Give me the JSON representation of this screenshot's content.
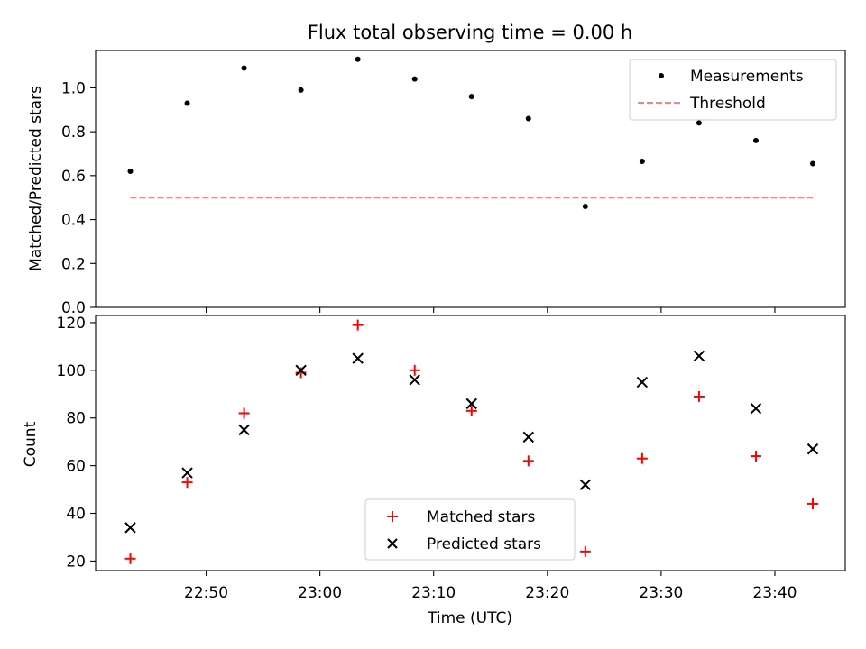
{
  "chart_data": [
    {
      "type": "scatter",
      "title": "Flux total observing time = 0.00 h",
      "ylabel": "Matched/Predicted stars",
      "xlabel": "",
      "ylim": [
        0,
        1.17
      ],
      "y_ticks": [
        "0.0",
        "0.2",
        "0.4",
        "0.6",
        "0.8",
        "1.0"
      ],
      "x": [
        "22:43:20",
        "22:48:20",
        "22:53:20",
        "22:58:20",
        "23:03:20",
        "23:08:20",
        "23:13:20",
        "23:18:20",
        "23:23:20",
        "23:28:20",
        "23:33:20",
        "23:38:20",
        "23:43:20"
      ],
      "series": [
        {
          "name": "Measurements",
          "kind": "dot",
          "color": "#000000",
          "values": [
            0.62,
            0.93,
            1.09,
            0.99,
            1.13,
            1.04,
            0.96,
            0.86,
            0.46,
            0.665,
            0.84,
            0.76,
            0.655
          ]
        },
        {
          "name": "Threshold",
          "kind": "dashed-line",
          "color": "#ff7f7f",
          "x": [
            "22:43:20",
            "23:43:20"
          ],
          "values": [
            0.5,
            0.5
          ]
        }
      ],
      "legend": "top-right",
      "grid": false
    },
    {
      "type": "scatter",
      "title": "",
      "ylabel": "Count",
      "xlabel": "Time (UTC)",
      "ylim": [
        16,
        123
      ],
      "y_ticks": [
        "20",
        "40",
        "60",
        "80",
        "100",
        "120"
      ],
      "x_ticks": [
        "22:50",
        "23:00",
        "23:10",
        "23:20",
        "23:30",
        "23:40"
      ],
      "x": [
        "22:43:20",
        "22:48:20",
        "22:53:20",
        "22:58:20",
        "23:03:20",
        "23:08:20",
        "23:13:20",
        "23:18:20",
        "23:23:20",
        "23:28:20",
        "23:33:20",
        "23:38:20",
        "23:43:20"
      ],
      "series": [
        {
          "name": "Matched stars",
          "marker": "plus",
          "color": "#ff0000",
          "values": [
            21,
            53,
            82,
            99,
            119,
            100,
            83,
            62,
            24,
            63,
            89,
            64,
            44
          ]
        },
        {
          "name": "Predicted stars",
          "marker": "x",
          "color": "#000000",
          "values": [
            34,
            57,
            75,
            100,
            105,
            96,
            86,
            72,
            52,
            95,
            106,
            84,
            67
          ]
        }
      ],
      "legend": "bottom-center",
      "grid": false
    }
  ]
}
